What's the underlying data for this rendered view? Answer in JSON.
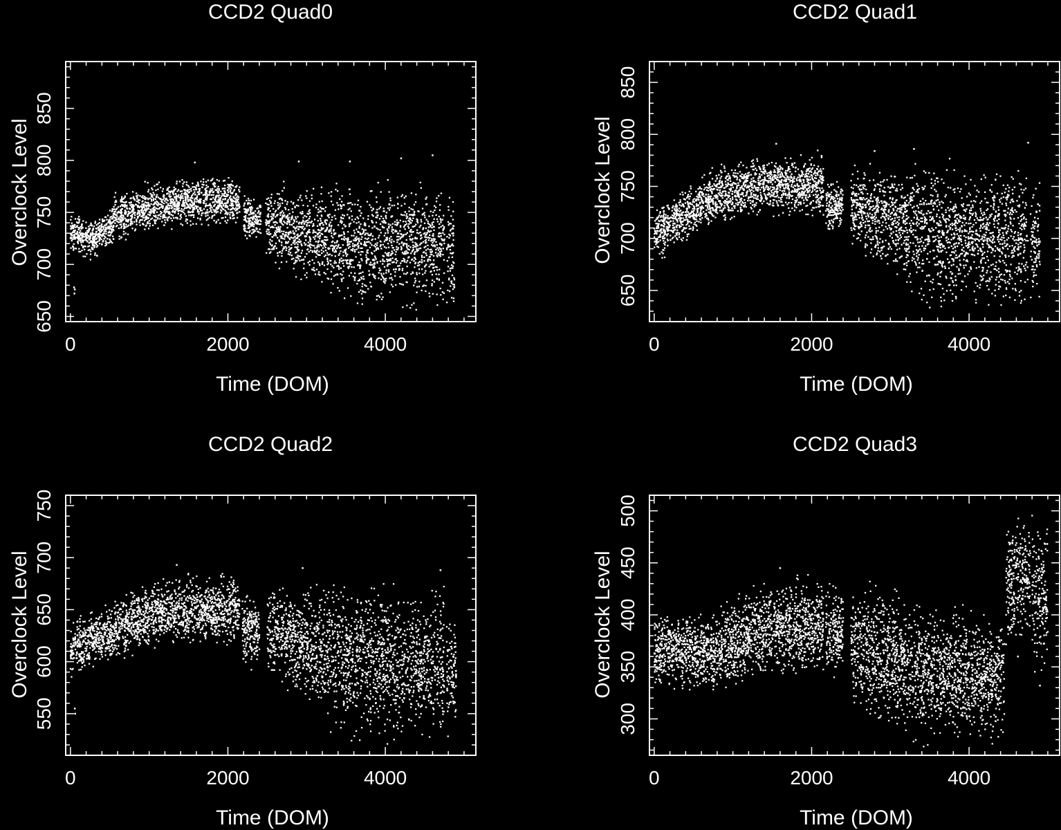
{
  "colors": {
    "background": "#000000",
    "foreground": "#ffffff"
  },
  "chart_data": [
    {
      "type": "scatter",
      "title": "CCD2 Quad0",
      "xlabel": "Time (DOM)",
      "ylabel": "Overclock Level",
      "xlim": [
        -60,
        5150
      ],
      "ylim": [
        645,
        895
      ],
      "xticks": [
        0,
        2000,
        4000
      ],
      "yticks": [
        650,
        700,
        750,
        800,
        850
      ],
      "x_minor_step": 200,
      "y_minor_step": 10,
      "grid": false,
      "point_count": 3600,
      "segments": [
        {
          "x": [
            0,
            350
          ],
          "lo": [
            708,
            700
          ],
          "hi": [
            752,
            748
          ]
        },
        {
          "x": [
            350,
            550
          ],
          "lo": [
            710,
            715
          ],
          "hi": [
            750,
            760
          ]
        },
        {
          "x": [
            550,
            1000
          ],
          "lo": [
            718,
            727
          ],
          "hi": [
            775,
            782
          ]
        },
        {
          "x": [
            1000,
            1600
          ],
          "lo": [
            727,
            733
          ],
          "hi": [
            782,
            790
          ]
        },
        {
          "x": [
            1600,
            2150
          ],
          "lo": [
            733,
            735
          ],
          "hi": [
            790,
            787
          ]
        },
        {
          "x": [
            2200,
            2420
          ],
          "lo": [
            718,
            722
          ],
          "hi": [
            772,
            765
          ]
        },
        {
          "x": [
            2480,
            3100
          ],
          "lo": [
            695,
            670
          ],
          "hi": [
            782,
            783
          ]
        },
        {
          "x": [
            3100,
            3700
          ],
          "lo": [
            670,
            648
          ],
          "hi": [
            783,
            785
          ]
        },
        {
          "x": [
            3700,
            4450
          ],
          "lo": [
            648,
            646
          ],
          "hi": [
            785,
            792
          ]
        },
        {
          "x": [
            4450,
            4750
          ],
          "lo": [
            646,
            647
          ],
          "hi": [
            792,
            785
          ]
        },
        {
          "x": [
            4780,
            4880
          ],
          "lo": [
            650,
            652
          ],
          "hi": [
            782,
            780
          ]
        }
      ],
      "outliers": [
        {
          "x": 45,
          "y": 678
        },
        {
          "x": 50,
          "y": 672
        },
        {
          "x": 55,
          "y": 676
        },
        {
          "x": 1580,
          "y": 798
        },
        {
          "x": 2900,
          "y": 799
        },
        {
          "x": 3550,
          "y": 799
        },
        {
          "x": 4200,
          "y": 802
        },
        {
          "x": 4600,
          "y": 805
        }
      ]
    },
    {
      "type": "scatter",
      "title": "CCD2 Quad1",
      "xlabel": "Time (DOM)",
      "ylabel": "Overclock Level",
      "xlim": [
        -60,
        5150
      ],
      "ylim": [
        620,
        870
      ],
      "xticks": [
        0,
        2000,
        4000
      ],
      "yticks": [
        650,
        700,
        750,
        800,
        850
      ],
      "x_minor_step": 200,
      "y_minor_step": 10,
      "grid": false,
      "point_count": 3700,
      "segments": [
        {
          "x": [
            0,
            300
          ],
          "lo": [
            672,
            690
          ],
          "hi": [
            735,
            745
          ]
        },
        {
          "x": [
            300,
            800
          ],
          "lo": [
            690,
            710
          ],
          "hi": [
            745,
            775
          ]
        },
        {
          "x": [
            800,
            1400
          ],
          "lo": [
            710,
            718
          ],
          "hi": [
            775,
            785
          ]
        },
        {
          "x": [
            1400,
            2150
          ],
          "lo": [
            718,
            716
          ],
          "hi": [
            785,
            787
          ]
        },
        {
          "x": [
            2180,
            2400
          ],
          "lo": [
            697,
            700
          ],
          "hi": [
            768,
            762
          ]
        },
        {
          "x": [
            2500,
            2900
          ],
          "lo": [
            692,
            660
          ],
          "hi": [
            774,
            778
          ]
        },
        {
          "x": [
            2900,
            3500
          ],
          "lo": [
            660,
            628
          ],
          "hi": [
            778,
            782
          ]
        },
        {
          "x": [
            3500,
            4750
          ],
          "lo": [
            625,
            622
          ],
          "hi": [
            782,
            780
          ]
        },
        {
          "x": [
            4780,
            4900
          ],
          "lo": [
            625,
            630
          ],
          "hi": [
            765,
            758
          ]
        }
      ],
      "outliers": [
        {
          "x": 1550,
          "y": 791
        },
        {
          "x": 2800,
          "y": 784
        },
        {
          "x": 3300,
          "y": 786
        },
        {
          "x": 4750,
          "y": 792
        }
      ]
    },
    {
      "type": "scatter",
      "title": "CCD2 Quad2",
      "xlabel": "Time (DOM)",
      "ylabel": "Overclock Level",
      "xlim": [
        -60,
        5150
      ],
      "ylim": [
        510,
        760
      ],
      "xticks": [
        0,
        2000,
        4000
      ],
      "yticks": [
        550,
        600,
        650,
        700,
        750
      ],
      "x_minor_step": 200,
      "y_minor_step": 10,
      "grid": false,
      "point_count": 3700,
      "segments": [
        {
          "x": [
            0,
            350
          ],
          "lo": [
            580,
            590
          ],
          "hi": [
            645,
            655
          ]
        },
        {
          "x": [
            350,
            900
          ],
          "lo": [
            590,
            605
          ],
          "hi": [
            655,
            680
          ]
        },
        {
          "x": [
            900,
            1500
          ],
          "lo": [
            605,
            612
          ],
          "hi": [
            680,
            690
          ]
        },
        {
          "x": [
            1500,
            2150
          ],
          "lo": [
            612,
            608
          ],
          "hi": [
            690,
            688
          ]
        },
        {
          "x": [
            2180,
            2400
          ],
          "lo": [
            585,
            590
          ],
          "hi": [
            672,
            665
          ]
        },
        {
          "x": [
            2500,
            3000
          ],
          "lo": [
            575,
            545
          ],
          "hi": [
            680,
            686
          ]
        },
        {
          "x": [
            3000,
            3500
          ],
          "lo": [
            545,
            518
          ],
          "hi": [
            686,
            686
          ]
        },
        {
          "x": [
            3500,
            4750
          ],
          "lo": [
            515,
            512
          ],
          "hi": [
            686,
            682
          ]
        },
        {
          "x": [
            4780,
            4900
          ],
          "lo": [
            515,
            520
          ],
          "hi": [
            660,
            655
          ]
        }
      ],
      "outliers": [
        {
          "x": 55,
          "y": 555
        },
        {
          "x": 60,
          "y": 550
        },
        {
          "x": 1350,
          "y": 693
        },
        {
          "x": 2950,
          "y": 690
        },
        {
          "x": 4700,
          "y": 688
        }
      ]
    },
    {
      "type": "scatter",
      "title": "CCD2 Quad3",
      "xlabel": "Time (DOM)",
      "ylabel": "Overclock Level",
      "xlim": [
        -60,
        5150
      ],
      "ylim": [
        265,
        515
      ],
      "xticks": [
        0,
        2000,
        4000
      ],
      "yticks": [
        300,
        350,
        400,
        450,
        500
      ],
      "x_minor_step": 200,
      "y_minor_step": 10,
      "grid": false,
      "point_count": 4100,
      "segments": [
        {
          "x": [
            0,
            800
          ],
          "lo": [
            322,
            320
          ],
          "hi": [
            410,
            412
          ]
        },
        {
          "x": [
            800,
            1400
          ],
          "lo": [
            320,
            335
          ],
          "hi": [
            412,
            440
          ]
        },
        {
          "x": [
            1400,
            2150
          ],
          "lo": [
            335,
            332
          ],
          "hi": [
            440,
            442
          ]
        },
        {
          "x": [
            2180,
            2400
          ],
          "lo": [
            328,
            330
          ],
          "hi": [
            440,
            436
          ]
        },
        {
          "x": [
            2500,
            3000
          ],
          "lo": [
            300,
            275
          ],
          "hi": [
            440,
            438
          ]
        },
        {
          "x": [
            3000,
            3500
          ],
          "lo": [
            275,
            268
          ],
          "hi": [
            438,
            420
          ]
        },
        {
          "x": [
            3500,
            4450
          ],
          "lo": [
            268,
            270
          ],
          "hi": [
            420,
            412
          ]
        },
        {
          "x": [
            4470,
            4780
          ],
          "lo": [
            355,
            360
          ],
          "hi": [
            512,
            510
          ]
        },
        {
          "x": [
            4800,
            5000
          ],
          "lo": [
            330,
            335
          ],
          "hi": [
            512,
            512
          ]
        }
      ],
      "outliers": [
        {
          "x": 4620,
          "y": 360
        },
        {
          "x": 4900,
          "y": 332
        },
        {
          "x": 1600,
          "y": 445
        }
      ]
    }
  ]
}
